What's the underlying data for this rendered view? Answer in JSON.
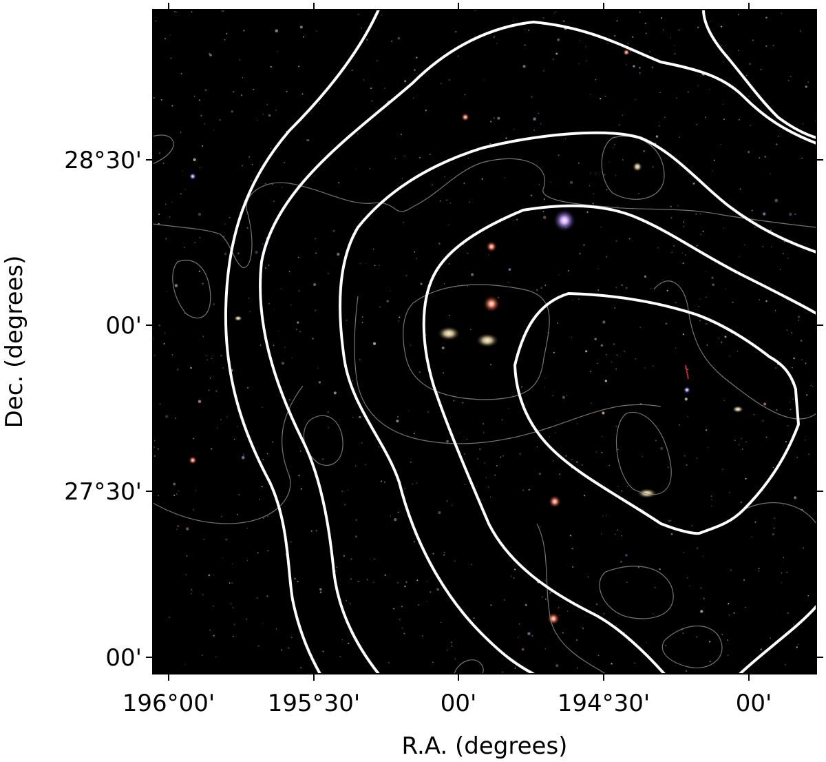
{
  "figure": {
    "axes": {
      "x_title": "R.A. (degrees)",
      "y_title": "Dec. (degrees)",
      "x_tick_labels": [
        "196°00'",
        "195°30'",
        "00'",
        "194°30'",
        "00'"
      ],
      "y_tick_labels": [
        "28°30'",
        "00'",
        "27°30'",
        "00'"
      ]
    },
    "colors": {
      "sky_background": "#000000",
      "bold_contour": "#ffffff",
      "thin_contour": "#8a8a8a"
    }
  }
}
